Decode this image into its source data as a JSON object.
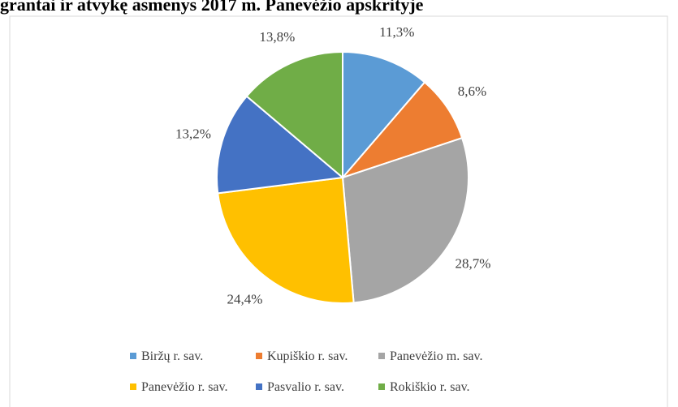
{
  "chart_data": {
    "type": "pie",
    "title": "grantai ir atvykę asmenys 2017 m. Panevėžio apskrityje",
    "categories": [
      "Biržų r. sav.",
      "Kupiškio r. sav.",
      "Panevėžio m. sav.",
      "Panevėžio r. sav.",
      "Pasvalio r. sav.",
      "Rokiškio r. sav."
    ],
    "values": [
      11.3,
      8.6,
      28.7,
      24.4,
      13.2,
      13.8
    ],
    "value_labels": [
      "11,3%",
      "8,6%",
      "28,7%",
      "24,4%",
      "13,2%",
      "13,8%"
    ],
    "colors": [
      "#5b9bd5",
      "#ed7d31",
      "#a5a5a5",
      "#ffc000",
      "#4472c4",
      "#70ad47"
    ],
    "legend": "bottom"
  }
}
